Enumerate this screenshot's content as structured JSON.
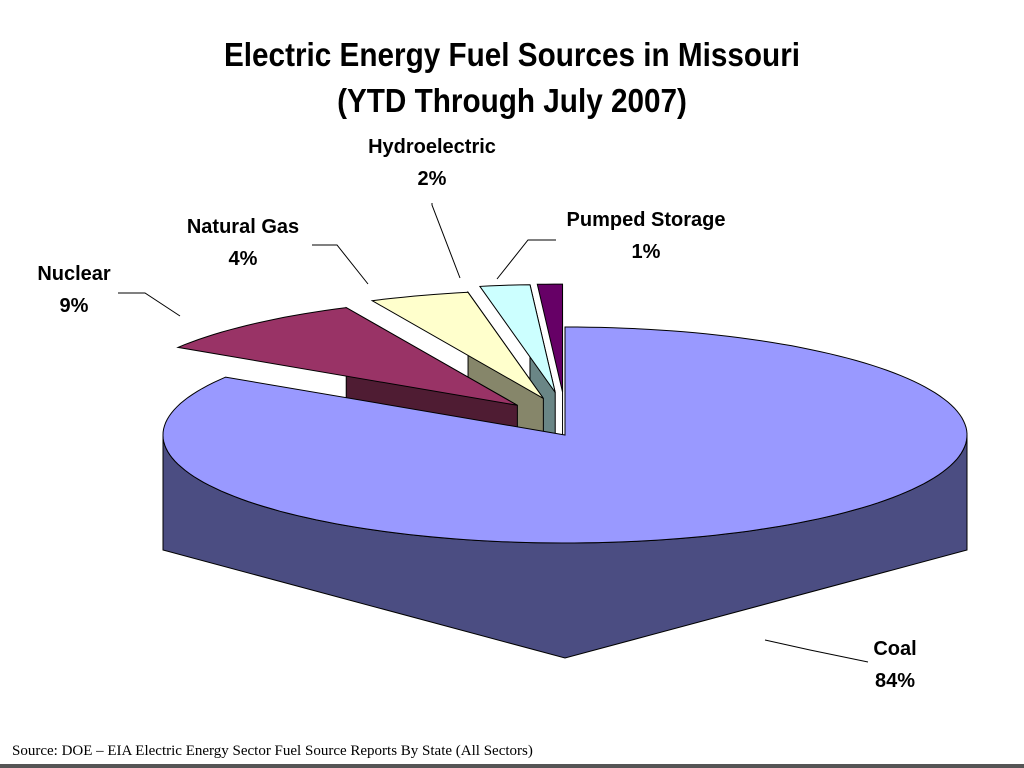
{
  "chart_data": {
    "type": "pie",
    "title": "Electric Energy Fuel Sources in Missouri",
    "subtitle": "(YTD Through July 2007)",
    "slices": [
      {
        "label": "Coal",
        "value_label": "84%",
        "value": 84,
        "top_color": "#9999FF",
        "side_color": "#4B4D82"
      },
      {
        "label": "Nuclear",
        "value_label": "9%",
        "value": 9,
        "top_color": "#993366",
        "side_color": "#4F1C33"
      },
      {
        "label": "Natural Gas",
        "value_label": "4%",
        "value": 4,
        "top_color": "#FFFFCC",
        "side_color": "#86866A"
      },
      {
        "label": "Hydroelectric",
        "value_label": "2%",
        "value": 2,
        "top_color": "#CCFFFF",
        "side_color": "#6A8686"
      },
      {
        "label": "Pumped Storage",
        "value_label": "1%",
        "value": 1,
        "top_color": "#660066",
        "side_color": "#330033"
      }
    ],
    "legend": "none"
  },
  "footer": {
    "source": "Source: DOE – EIA Electric Energy Sector Fuel Source Reports By State (All Sectors)"
  }
}
